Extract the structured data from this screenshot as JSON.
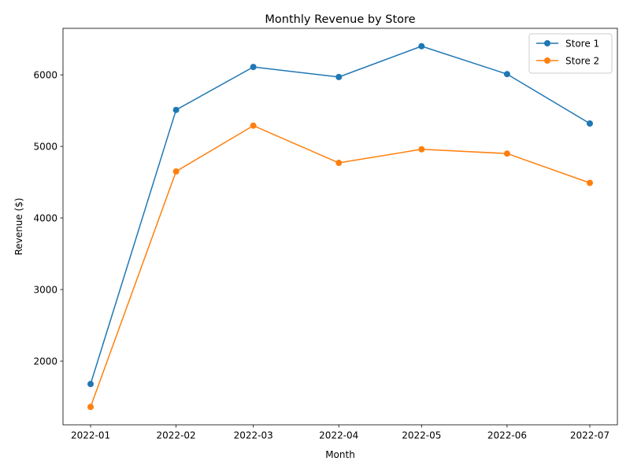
{
  "chart_data": {
    "type": "line",
    "title": "Monthly Revenue by Store",
    "xlabel": "Month",
    "ylabel": "Revenue ($)",
    "x": [
      "2022-01",
      "2022-02",
      "2022-03",
      "2022-04",
      "2022-05",
      "2022-06",
      "2022-07"
    ],
    "x_dates": [
      "2022-01-01",
      "2022-02-01",
      "2022-03-01",
      "2022-04-01",
      "2022-05-01",
      "2022-06-01",
      "2022-07-01"
    ],
    "xlim": [
      "2021-12-22",
      "2022-07-11"
    ],
    "ylim": [
      1110,
      6650
    ],
    "yticks": [
      2000,
      3000,
      4000,
      5000,
      6000
    ],
    "grid": false,
    "legend_position": "top-right",
    "series": [
      {
        "name": "Store 1",
        "color": "#1f77b4",
        "marker": "circle",
        "values": [
          1680,
          5510,
          6110,
          5970,
          6400,
          6010,
          5320
        ]
      },
      {
        "name": "Store 2",
        "color": "#ff7f0e",
        "marker": "circle",
        "values": [
          1360,
          4650,
          5290,
          4770,
          4960,
          4900,
          4490
        ]
      }
    ]
  }
}
